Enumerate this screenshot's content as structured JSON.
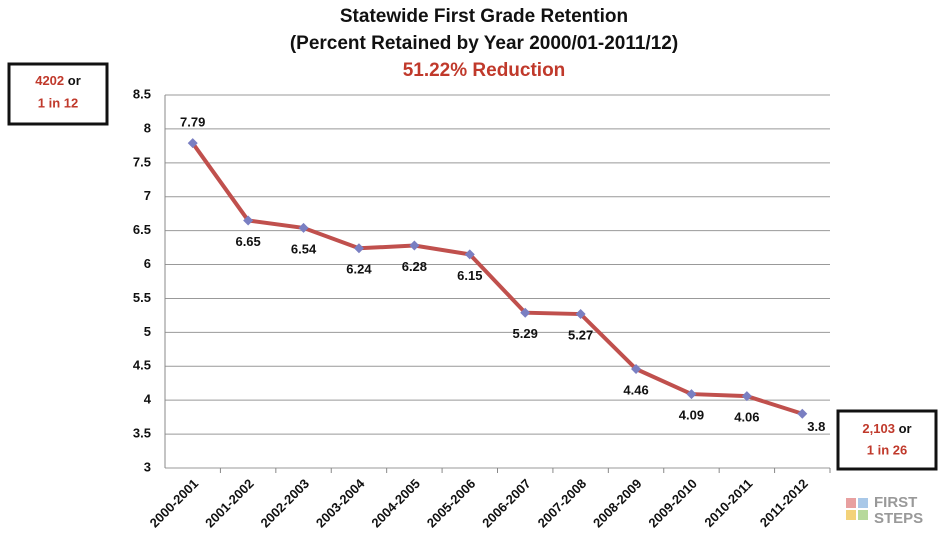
{
  "chart_data": {
    "type": "line",
    "title": "Statewide First Grade Retention",
    "subtitle": "(Percent Retained by Year 2000/01-2011/12)",
    "annotation": "51.22% Reduction",
    "categories": [
      "2000-2001",
      "2001-2002",
      "2002-2003",
      "2003-2004",
      "2004-2005",
      "2005-2006",
      "2006-2007",
      "2007-2008",
      "2008-2009",
      "2009-2010",
      "2010-2011",
      "2011-2012"
    ],
    "values": [
      7.79,
      6.65,
      6.54,
      6.24,
      6.28,
      6.15,
      5.29,
      5.27,
      4.46,
      4.09,
      4.06,
      3.8
    ],
    "color": "#c0504d",
    "marker_color": "#7a7fc2",
    "ylim": [
      3,
      8.5
    ],
    "yticks": [
      3,
      3.5,
      4,
      4.5,
      5,
      5.5,
      6,
      6.5,
      7,
      7.5,
      8,
      8.5
    ],
    "grid": true,
    "boxes": [
      {
        "highlight": "4202",
        "rest": "or",
        "line2": "1 in 12"
      },
      {
        "highlight": "2,103",
        "rest": "or",
        "line2": "1 in 26"
      }
    ],
    "logo": [
      "FIRST",
      "STEPS"
    ]
  }
}
